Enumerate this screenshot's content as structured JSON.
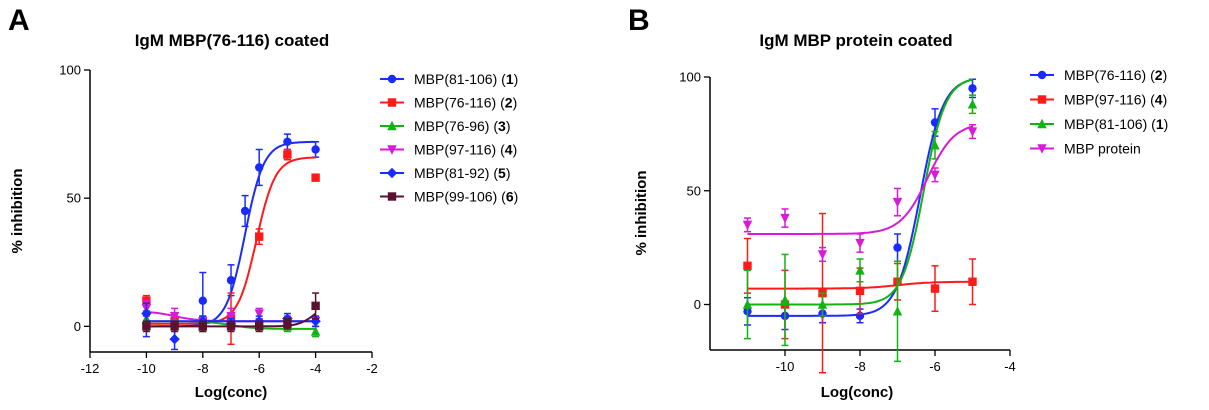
{
  "chart_data": [
    {
      "panel": "A",
      "type": "line",
      "title": "IgM MBP(76-116) coated",
      "xlabel": "Log(conc)",
      "ylabel": "% inhibition",
      "xlim": [
        -12,
        -2
      ],
      "ylim": [
        -10,
        100
      ],
      "xticks": [
        "-12",
        "-10",
        "-8",
        "-6",
        "-4",
        "-2"
      ],
      "yticks": [
        "0",
        "50",
        "100"
      ],
      "legend_position": "right",
      "series": [
        {
          "name": "MBP(81-106)",
          "id": "1",
          "color": "#1a2bff",
          "marker": "circle",
          "x": [
            -10,
            -9,
            -8,
            -7,
            -6.5,
            -6,
            -5,
            -4
          ],
          "y": [
            1,
            0,
            10,
            18,
            45,
            62,
            72,
            69
          ],
          "err": [
            5,
            5,
            11,
            6,
            6,
            7,
            3,
            3
          ],
          "fit": {
            "bottom": 0,
            "top": 72,
            "ec50": -6.5,
            "hill": 1.3
          }
        },
        {
          "name": "MBP(76-116)",
          "id": "2",
          "color": "#ff1a1a",
          "marker": "square",
          "x": [
            -10,
            -9,
            -8,
            -7,
            -6,
            -5,
            -4
          ],
          "y": [
            10,
            2,
            2,
            3,
            35,
            67,
            58
          ],
          "err": [
            2,
            2,
            2,
            10,
            3,
            2,
            1
          ],
          "fit": {
            "bottom": 1,
            "top": 66,
            "ec50": -6.1,
            "hill": 1.3
          }
        },
        {
          "name": "MBP(76-96)",
          "id": "3",
          "color": "#13b313",
          "marker": "triangle-up",
          "x": [
            -10,
            -9,
            -8,
            -7,
            -6,
            -5,
            -4
          ],
          "y": [
            3,
            2,
            0,
            2,
            1,
            0,
            -2
          ],
          "err": [
            3,
            2,
            2,
            3,
            2,
            2,
            2
          ],
          "fit": {
            "bottom": 2,
            "top": -1,
            "ec50": -7,
            "hill": 1
          }
        },
        {
          "name": "MBP(97-116)",
          "id": "4",
          "color": "#d81ad8",
          "marker": "triangle-down",
          "x": [
            -10,
            -9,
            -8,
            -7,
            -6,
            -5,
            -4
          ],
          "y": [
            7,
            4,
            2,
            4,
            5,
            2,
            2
          ],
          "err": [
            3,
            3,
            2,
            3,
            2,
            2,
            2
          ],
          "fit": {
            "bottom": 6,
            "top": 2,
            "ec50": -9,
            "hill": 1
          }
        },
        {
          "name": "MBP(81-92)",
          "id": "5",
          "color": "#1a2bff",
          "marker": "diamond",
          "x": [
            -10,
            -9,
            -8,
            -7,
            -6,
            -5,
            -4
          ],
          "y": [
            5,
            -5,
            2,
            1,
            2,
            3,
            2
          ],
          "err": [
            4,
            4,
            2,
            2,
            2,
            2,
            2
          ],
          "fit": {
            "bottom": 2,
            "top": 2,
            "ec50": -7,
            "hill": 1
          }
        },
        {
          "name": "MBP(99-106)",
          "id": "6",
          "color": "#5a1230",
          "marker": "square",
          "x": [
            -10,
            -9,
            -8,
            -7,
            -6,
            -5,
            -4
          ],
          "y": [
            0,
            0,
            0,
            0,
            0,
            1,
            8
          ],
          "err": [
            2,
            2,
            2,
            2,
            2,
            2,
            5
          ],
          "fit": {
            "bottom": 0,
            "top": 10,
            "ec50": -4,
            "hill": 1.5
          }
        }
      ]
    },
    {
      "panel": "B",
      "type": "line",
      "title": "IgM MBP protein coated",
      "xlabel": "Log(conc)",
      "ylabel": "% inhibition",
      "xlim": [
        -12,
        -4
      ],
      "ylim": [
        -20,
        100
      ],
      "xticks": [
        "-10",
        "-8",
        "-6",
        "-4"
      ],
      "yticks": [
        "0",
        "50",
        "100"
      ],
      "legend_position": "right",
      "series": [
        {
          "name": "MBP(76-116)",
          "id": "2",
          "color": "#1a2bff",
          "marker": "circle",
          "x": [
            -11,
            -10,
            -9,
            -8,
            -7,
            -6,
            -5
          ],
          "y": [
            -3,
            -5,
            -4,
            -5,
            25,
            80,
            95
          ],
          "err": [
            6,
            6,
            4,
            3,
            6,
            6,
            4
          ],
          "fit": {
            "bottom": -5,
            "top": 100,
            "ec50": -6.4,
            "hill": 1.4
          }
        },
        {
          "name": "MBP(97-116)",
          "id": "4",
          "color": "#ff1a1a",
          "marker": "square",
          "x": [
            -11,
            -10,
            -9,
            -8,
            -7,
            -6,
            -5
          ],
          "y": [
            17,
            0,
            5,
            6,
            10,
            7,
            10
          ],
          "err": [
            12,
            15,
            35,
            10,
            8,
            10,
            10
          ],
          "fit": {
            "bottom": 7,
            "top": 10,
            "ec50": -7,
            "hill": 1
          }
        },
        {
          "name": "MBP(81-106)",
          "id": "1",
          "color": "#13b313",
          "marker": "triangle-up",
          "x": [
            -11,
            -10,
            -9,
            -8,
            -7,
            -6,
            -5
          ],
          "y": [
            0,
            2,
            0,
            15,
            -3,
            70,
            88
          ],
          "err": [
            15,
            20,
            5,
            5,
            22,
            6,
            4
          ],
          "fit": {
            "bottom": 0,
            "top": 100,
            "ec50": -6.3,
            "hill": 1.5
          }
        },
        {
          "name": "MBP protein",
          "id": "",
          "color": "#d81ad8",
          "marker": "triangle-down",
          "x": [
            -11,
            -10,
            -9,
            -8,
            -7,
            -6,
            -5
          ],
          "y": [
            35,
            38,
            22,
            27,
            45,
            57,
            76
          ],
          "err": [
            3,
            4,
            3,
            4,
            6,
            3,
            3
          ],
          "fit": {
            "bottom": 31,
            "top": 80,
            "ec50": -6.2,
            "hill": 1.2
          }
        }
      ]
    }
  ]
}
